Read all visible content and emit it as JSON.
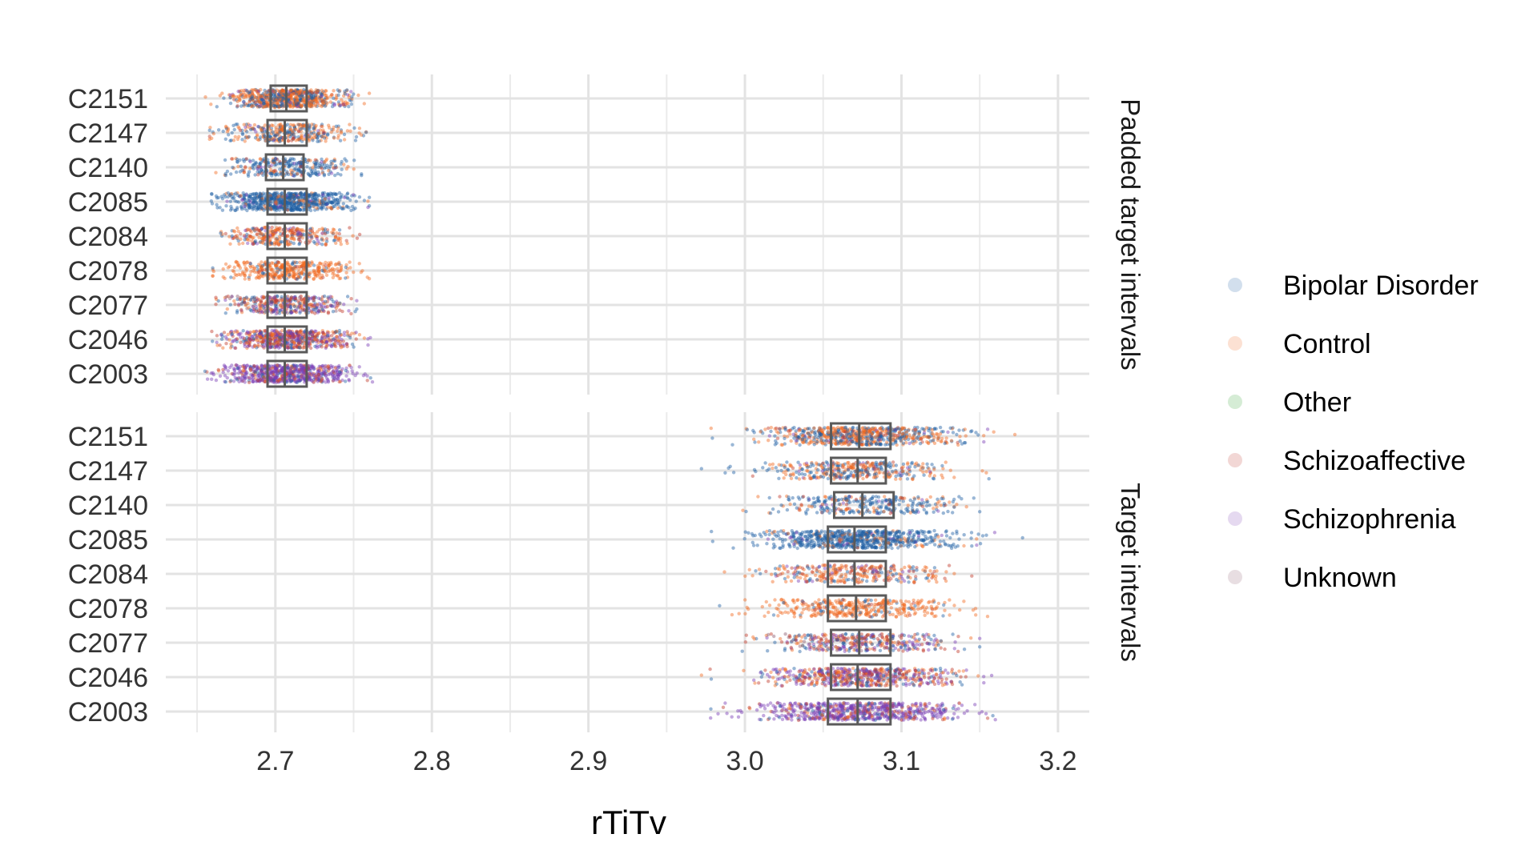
{
  "chart_data": {
    "type": "scatter",
    "subtype": "jitter points with boxplots, faceted by row",
    "xlabel": "rTiTv",
    "ylabel": "",
    "xlim": [
      2.63,
      3.22
    ],
    "x_ticks": [
      2.7,
      2.8,
      2.9,
      3.0,
      3.1,
      3.2
    ],
    "x_tick_labels": [
      "2.7",
      "2.8",
      "2.9",
      "3.0",
      "3.1",
      "3.2"
    ],
    "categories": [
      "C2151",
      "C2147",
      "C2140",
      "C2085",
      "C2084",
      "C2078",
      "C2077",
      "C2046",
      "C2003"
    ],
    "legend": {
      "position": "right",
      "entries": [
        {
          "name": "Bipolar Disorder",
          "color": "#1f5fa3"
        },
        {
          "name": "Control",
          "color": "#f26b21"
        },
        {
          "name": "Other",
          "color": "#2ca02c"
        },
        {
          "name": "Schizoaffective",
          "color": "#c0392b"
        },
        {
          "name": "Schizophrenia",
          "color": "#7b3fb5"
        },
        {
          "name": "Unknown",
          "color": "#8c5a6e"
        }
      ]
    },
    "grid": true,
    "facets": [
      {
        "label": "Padded target intervals",
        "boxes": [
          {
            "category": "C2151",
            "q1": 2.697,
            "median": 2.707,
            "q3": 2.72,
            "min": 2.655,
            "max": 2.76,
            "density": 1.0,
            "mix": {
              "Bipolar Disorder": 0.35,
              "Control": 0.55,
              "Schizoaffective": 0.05,
              "Schizophrenia": 0.05
            }
          },
          {
            "category": "C2147",
            "q1": 2.695,
            "median": 2.706,
            "q3": 2.72,
            "min": 2.658,
            "max": 2.758,
            "density": 0.5,
            "mix": {
              "Bipolar Disorder": 0.35,
              "Control": 0.55,
              "Schizoaffective": 0.05,
              "Schizophrenia": 0.05
            }
          },
          {
            "category": "C2140",
            "q1": 2.694,
            "median": 2.705,
            "q3": 2.718,
            "min": 2.662,
            "max": 2.755,
            "density": 0.45,
            "mix": {
              "Bipolar Disorder": 0.65,
              "Control": 0.25,
              "Schizoaffective": 0.05,
              "Schizophrenia": 0.05
            }
          },
          {
            "category": "C2085",
            "q1": 2.695,
            "median": 2.706,
            "q3": 2.72,
            "min": 2.655,
            "max": 2.76,
            "density": 1.0,
            "mix": {
              "Bipolar Disorder": 0.85,
              "Control": 0.1,
              "Schizophrenia": 0.05
            }
          },
          {
            "category": "C2084",
            "q1": 2.695,
            "median": 2.706,
            "q3": 2.72,
            "min": 2.665,
            "max": 2.755,
            "density": 0.45,
            "mix": {
              "Bipolar Disorder": 0.2,
              "Control": 0.5,
              "Schizoaffective": 0.2,
              "Schizophrenia": 0.1
            }
          },
          {
            "category": "C2078",
            "q1": 2.695,
            "median": 2.706,
            "q3": 2.72,
            "min": 2.66,
            "max": 2.76,
            "density": 0.55,
            "mix": {
              "Bipolar Disorder": 0.1,
              "Control": 0.85,
              "Schizoaffective": 0.05
            }
          },
          {
            "category": "C2077",
            "q1": 2.695,
            "median": 2.706,
            "q3": 2.72,
            "min": 2.662,
            "max": 2.752,
            "density": 0.55,
            "mix": {
              "Bipolar Disorder": 0.25,
              "Control": 0.2,
              "Schizoaffective": 0.2,
              "Schizophrenia": 0.25,
              "Unknown": 0.1
            }
          },
          {
            "category": "C2046",
            "q1": 2.695,
            "median": 2.706,
            "q3": 2.72,
            "min": 2.655,
            "max": 2.762,
            "density": 0.85,
            "mix": {
              "Bipolar Disorder": 0.15,
              "Control": 0.25,
              "Schizoaffective": 0.25,
              "Schizophrenia": 0.35
            }
          },
          {
            "category": "C2003",
            "q1": 2.695,
            "median": 2.706,
            "q3": 2.72,
            "min": 2.655,
            "max": 2.762,
            "density": 1.0,
            "mix": {
              "Bipolar Disorder": 0.1,
              "Control": 0.1,
              "Schizoaffective": 0.1,
              "Schizophrenia": 0.7
            }
          }
        ]
      },
      {
        "label": "Target intervals",
        "boxes": [
          {
            "category": "C2151",
            "q1": 3.055,
            "median": 3.073,
            "q3": 3.093,
            "min": 2.97,
            "max": 3.175,
            "density": 1.0,
            "mix": {
              "Bipolar Disorder": 0.45,
              "Control": 0.45,
              "Schizoaffective": 0.05,
              "Schizophrenia": 0.05
            }
          },
          {
            "category": "C2147",
            "q1": 3.055,
            "median": 3.072,
            "q3": 3.09,
            "min": 2.97,
            "max": 3.16,
            "density": 0.55,
            "mix": {
              "Bipolar Disorder": 0.4,
              "Control": 0.45,
              "Schizoaffective": 0.1,
              "Schizophrenia": 0.05
            }
          },
          {
            "category": "C2140",
            "q1": 3.057,
            "median": 3.075,
            "q3": 3.095,
            "min": 2.99,
            "max": 3.15,
            "density": 0.45,
            "mix": {
              "Bipolar Disorder": 0.65,
              "Control": 0.25,
              "Schizoaffective": 0.05,
              "Schizophrenia": 0.05
            }
          },
          {
            "category": "C2085",
            "q1": 3.053,
            "median": 3.07,
            "q3": 3.09,
            "min": 2.97,
            "max": 3.18,
            "density": 1.0,
            "mix": {
              "Bipolar Disorder": 0.85,
              "Control": 0.1,
              "Schizophrenia": 0.05
            }
          },
          {
            "category": "C2084",
            "q1": 3.053,
            "median": 3.07,
            "q3": 3.09,
            "min": 2.985,
            "max": 3.15,
            "density": 0.45,
            "mix": {
              "Bipolar Disorder": 0.2,
              "Control": 0.5,
              "Schizoaffective": 0.2,
              "Schizophrenia": 0.1
            }
          },
          {
            "category": "C2078",
            "q1": 3.053,
            "median": 3.071,
            "q3": 3.09,
            "min": 2.98,
            "max": 3.155,
            "density": 0.55,
            "mix": {
              "Bipolar Disorder": 0.1,
              "Control": 0.85,
              "Schizoaffective": 0.05
            }
          },
          {
            "category": "C2077",
            "q1": 3.055,
            "median": 3.073,
            "q3": 3.093,
            "min": 2.98,
            "max": 3.15,
            "density": 0.55,
            "mix": {
              "Bipolar Disorder": 0.25,
              "Control": 0.2,
              "Schizoaffective": 0.2,
              "Schizophrenia": 0.25,
              "Unknown": 0.1
            }
          },
          {
            "category": "C2046",
            "q1": 3.055,
            "median": 3.072,
            "q3": 3.093,
            "min": 2.97,
            "max": 3.16,
            "density": 0.85,
            "mix": {
              "Bipolar Disorder": 0.15,
              "Control": 0.25,
              "Schizoaffective": 0.25,
              "Schizophrenia": 0.35
            }
          },
          {
            "category": "C2003",
            "q1": 3.053,
            "median": 3.072,
            "q3": 3.093,
            "min": 2.965,
            "max": 3.16,
            "density": 1.0,
            "mix": {
              "Bipolar Disorder": 0.1,
              "Control": 0.1,
              "Schizoaffective": 0.1,
              "Schizophrenia": 0.7
            }
          }
        ]
      }
    ]
  }
}
